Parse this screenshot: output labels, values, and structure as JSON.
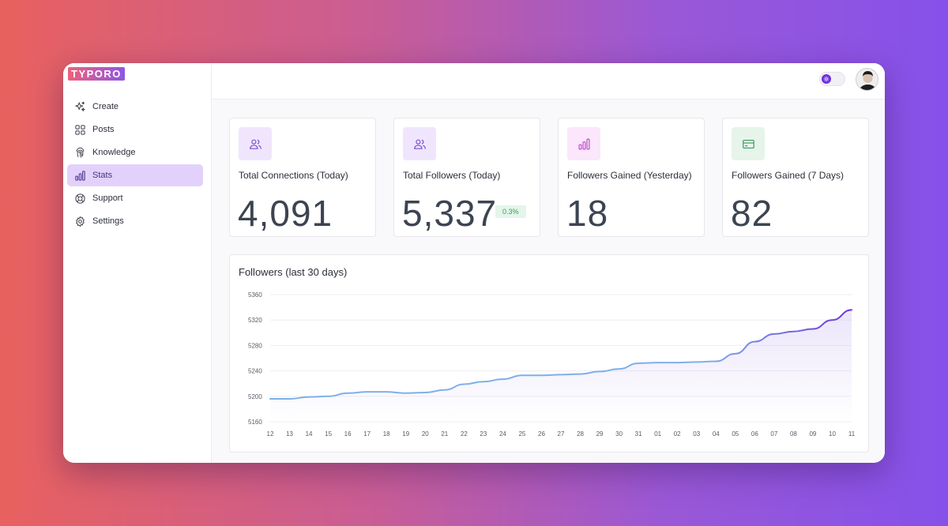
{
  "app": {
    "logo": "TYPORO"
  },
  "sidebar": {
    "items": [
      {
        "label": "Create",
        "icon": "sparkles-icon",
        "active": false
      },
      {
        "label": "Posts",
        "icon": "grid-icon",
        "active": false
      },
      {
        "label": "Knowledge",
        "icon": "fingerprint-icon",
        "active": false
      },
      {
        "label": "Stats",
        "icon": "bar-chart-icon",
        "active": true
      },
      {
        "label": "Support",
        "icon": "lifebuoy-icon",
        "active": false
      },
      {
        "label": "Settings",
        "icon": "gear-icon",
        "active": false
      }
    ]
  },
  "header": {
    "theme_toggle_icon": "sun-icon",
    "avatar_icon": "user-avatar"
  },
  "cards": [
    {
      "title": "Total Connections (Today)",
      "value": "4,091",
      "icon": "users-icon",
      "icon_bg": "#efe6fd",
      "icon_color": "#7b4fd1"
    },
    {
      "title": "Total Followers (Today)",
      "value": "5,337",
      "badge": "0.3%",
      "icon": "users-icon",
      "icon_bg": "#efe6fd",
      "icon_color": "#7b4fd1"
    },
    {
      "title": "Followers Gained (Yesterday)",
      "value": "18",
      "icon": "bar-chart-icon",
      "icon_bg": "#fbe6fb",
      "icon_color": "#c04fcc"
    },
    {
      "title": "Followers Gained (7 Days)",
      "value": "82",
      "icon": "credit-card-icon",
      "icon_bg": "#e6f4ea",
      "icon_color": "#3f9a5f"
    }
  ],
  "chart_data": {
    "type": "line",
    "title": "Followers (last 30 days)",
    "xlabel": "",
    "ylabel": "",
    "categories": [
      "12",
      "13",
      "14",
      "15",
      "16",
      "17",
      "18",
      "19",
      "20",
      "21",
      "22",
      "23",
      "24",
      "25",
      "26",
      "27",
      "28",
      "29",
      "30",
      "31",
      "01",
      "02",
      "03",
      "04",
      "05",
      "06",
      "07",
      "08",
      "09",
      "10",
      "11"
    ],
    "series": [
      {
        "values": [
          5196,
          5196,
          5199,
          5200,
          5205,
          5207,
          5207,
          5205,
          5206,
          5210,
          5219,
          5223,
          5227,
          5233,
          5233,
          5234,
          5235,
          5239,
          5243,
          5252,
          5253,
          5253,
          5254,
          5255,
          5267,
          5286,
          5298,
          5302,
          5306,
          5320,
          5336
        ]
      }
    ],
    "yticks": [
      5160,
      5200,
      5240,
      5280,
      5320,
      5360
    ],
    "ylim": [
      5160,
      5360
    ],
    "grid": true,
    "line_color_start": "#7fb0e8",
    "line_color_end": "#6a33d6"
  }
}
